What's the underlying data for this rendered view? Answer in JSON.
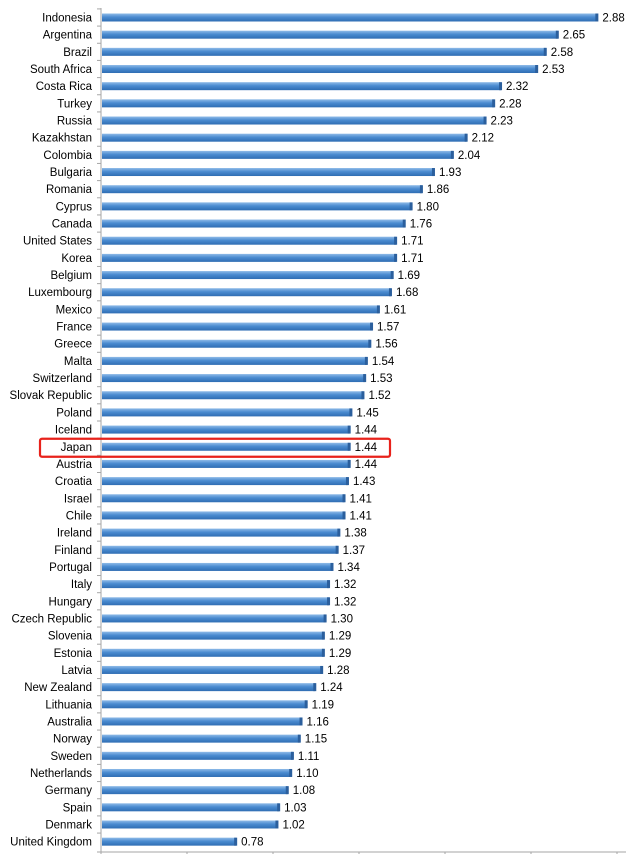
{
  "chart_data": {
    "type": "bar",
    "orientation": "horizontal",
    "title": "",
    "xlabel": "",
    "ylabel": "",
    "xlim": [
      0,
      3.0
    ],
    "grid": false,
    "legend": "none",
    "bar_color": "#4a8bd0",
    "highlight_color": "#e8221b",
    "highlight_category": "Japan",
    "categories": [
      "Indonesia",
      "Argentina",
      "Brazil",
      "South Africa",
      "Costa Rica",
      "Turkey",
      "Russia",
      "Kazakhstan",
      "Colombia",
      "Bulgaria",
      "Romania",
      "Cyprus",
      "Canada",
      "United States",
      "Korea",
      "Belgium",
      "Luxembourg",
      "Mexico",
      "France",
      "Greece",
      "Malta",
      "Switzerland",
      "Slovak Republic",
      "Poland",
      "Iceland",
      "Japan",
      "Austria",
      "Croatia",
      "Israel",
      "Chile",
      "Ireland",
      "Finland",
      "Portugal",
      "Italy",
      "Hungary",
      "Czech Republic",
      "Slovenia",
      "Estonia",
      "Latvia",
      "New Zealand",
      "Lithuania",
      "Australia",
      "Norway",
      "Sweden",
      "Netherlands",
      "Germany",
      "Spain",
      "Denmark",
      "United Kingdom"
    ],
    "values": [
      2.88,
      2.65,
      2.58,
      2.53,
      2.32,
      2.28,
      2.23,
      2.12,
      2.04,
      1.93,
      1.86,
      1.8,
      1.76,
      1.71,
      1.71,
      1.69,
      1.68,
      1.61,
      1.57,
      1.56,
      1.54,
      1.53,
      1.52,
      1.45,
      1.44,
      1.44,
      1.44,
      1.43,
      1.41,
      1.41,
      1.38,
      1.37,
      1.34,
      1.32,
      1.32,
      1.3,
      1.29,
      1.29,
      1.28,
      1.24,
      1.19,
      1.16,
      1.15,
      1.11,
      1.1,
      1.08,
      1.03,
      1.02,
      0.78
    ],
    "value_labels": [
      "2.88",
      "2.65",
      "2.58",
      "2.53",
      "2.32",
      "2.28",
      "2.23",
      "2.12",
      "2.04",
      "1.93",
      "1.86",
      "1.80",
      "1.76",
      "1.71",
      "1.71",
      "1.69",
      "1.68",
      "1.61",
      "1.57",
      "1.56",
      "1.54",
      "1.53",
      "1.52",
      "1.45",
      "1.44",
      "1.44",
      "1.44",
      "1.43",
      "1.41",
      "1.41",
      "1.38",
      "1.37",
      "1.34",
      "1.32",
      "1.32",
      "1.30",
      "1.29",
      "1.29",
      "1.28",
      "1.24",
      "1.19",
      "1.16",
      "1.15",
      "1.11",
      "1.10",
      "1.08",
      "1.03",
      "1.02",
      "0.78"
    ]
  }
}
